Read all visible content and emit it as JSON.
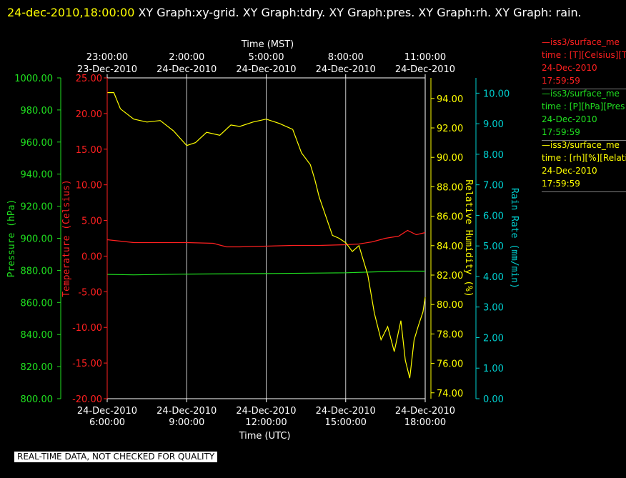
{
  "header": {
    "timestamp": "24-dec-2010,18:00:00",
    "graphs": "  XY Graph:xy-grid.  XY Graph:tdry.  XY Graph:pres.  XY Graph:rh.  XY Graph: rain."
  },
  "notice": "REAL-TIME DATA, NOT CHECKED FOR QUALITY",
  "legend": [
    {
      "line1": "—iss3/surface_me",
      "line2": "time : [T][Celsius][T",
      "date": "24-Dec-2010",
      "time": "17:59:59",
      "color": "#ff2020"
    },
    {
      "line1": "—iss3/surface_me",
      "line2": "time : [P][hPa][Pres",
      "date": "24-Dec-2010",
      "time": "17:59:59",
      "color": "#20e020"
    },
    {
      "line1": "—iss3/surface_me",
      "line2": "time : [rh][%][Relati",
      "date": "24-Dec-2010",
      "time": "17:59:59",
      "color": "#ffff00"
    }
  ],
  "chart_data": {
    "type": "line",
    "top_axis": {
      "title": "Time (MST)",
      "ticks": [
        {
          "at": "2010-12-24T06:00:00Z",
          "time": "23:00:00",
          "date": "23-Dec-2010"
        },
        {
          "at": "2010-12-24T09:00:00Z",
          "time": "2:00:00",
          "date": "24-Dec-2010"
        },
        {
          "at": "2010-12-24T12:00:00Z",
          "time": "5:00:00",
          "date": "24-Dec-2010"
        },
        {
          "at": "2010-12-24T15:00:00Z",
          "time": "8:00:00",
          "date": "24-Dec-2010"
        },
        {
          "at": "2010-12-24T18:00:00Z",
          "time": "11:00:00",
          "date": "24-Dec-2010"
        }
      ]
    },
    "bottom_axis": {
      "title": "Time (UTC)",
      "range": [
        "2010-12-24T06:00:00Z",
        "2010-12-24T18:00:00Z"
      ],
      "ticks": [
        {
          "at": "2010-12-24T06:00:00Z",
          "date": "24-Dec-2010",
          "time": "6:00:00"
        },
        {
          "at": "2010-12-24T09:00:00Z",
          "date": "24-Dec-2010",
          "time": "9:00:00"
        },
        {
          "at": "2010-12-24T12:00:00Z",
          "date": "24-Dec-2010",
          "time": "12:00:00"
        },
        {
          "at": "2010-12-24T15:00:00Z",
          "date": "24-Dec-2010",
          "time": "15:00:00"
        },
        {
          "at": "2010-12-24T18:00:00Z",
          "date": "24-Dec-2010",
          "time": "18:00:00"
        }
      ]
    },
    "grid": true,
    "axes": {
      "pressure": {
        "label": "Pressure (hPa)",
        "color": "#20e020",
        "range": [
          800,
          1000
        ],
        "ticks": [
          "800.00",
          "820.00",
          "840.00",
          "860.00",
          "880.00",
          "900.00",
          "920.00",
          "940.00",
          "960.00",
          "980.00",
          "1000.00"
        ]
      },
      "temperature": {
        "label": "Temperature (Celsius)",
        "color": "#ff2020",
        "range": [
          -20,
          25
        ],
        "ticks": [
          "-20.00",
          "-15.00",
          "-10.00",
          "-5.00",
          "0.00",
          "5.00",
          "10.00",
          "15.00",
          "20.00",
          "25.00"
        ]
      },
      "rh": {
        "label": "Relative Humidity (%)",
        "color": "#ffff00",
        "range": [
          73.6,
          95.4
        ],
        "ticks": [
          "74.00",
          "76.00",
          "78.00",
          "80.00",
          "82.00",
          "84.00",
          "86.00",
          "88.00",
          "90.00",
          "92.00",
          "94.00"
        ]
      },
      "rain": {
        "label": "Rain Rate (mm/min)",
        "color": "#00d0d0",
        "range": [
          0,
          10.5
        ],
        "ticks": [
          "0.00",
          "1.00",
          "2.00",
          "3.00",
          "4.00",
          "5.00",
          "6.00",
          "7.00",
          "8.00",
          "9.00",
          "10.00"
        ]
      }
    },
    "series": [
      {
        "axis": "temperature",
        "color": "#ff2020",
        "x": [
          "2010-12-24T06:00:00Z",
          "2010-12-24T06:30:00Z",
          "2010-12-24T07:00:00Z",
          "2010-12-24T08:00:00Z",
          "2010-12-24T09:00:00Z",
          "2010-12-24T10:00:00Z",
          "2010-12-24T10:30:00Z",
          "2010-12-24T11:00:00Z",
          "2010-12-24T12:00:00Z",
          "2010-12-24T13:00:00Z",
          "2010-12-24T14:00:00Z",
          "2010-12-24T15:00:00Z",
          "2010-12-24T15:30:00Z",
          "2010-12-24T16:00:00Z",
          "2010-12-24T16:30:00Z",
          "2010-12-24T17:00:00Z",
          "2010-12-24T17:20:00Z",
          "2010-12-24T17:40:00Z",
          "2010-12-24T18:00:00Z"
        ],
        "y": [
          2.3,
          2.1,
          1.9,
          1.9,
          1.9,
          1.8,
          1.3,
          1.3,
          1.4,
          1.5,
          1.5,
          1.6,
          1.7,
          2.0,
          2.5,
          2.8,
          3.6,
          3.0,
          3.3
        ]
      },
      {
        "axis": "pressure",
        "color": "#20e020",
        "x": [
          "2010-12-24T06:00:00Z",
          "2010-12-24T07:00:00Z",
          "2010-12-24T09:00:00Z",
          "2010-12-24T12:00:00Z",
          "2010-12-24T15:00:00Z",
          "2010-12-24T16:00:00Z",
          "2010-12-24T17:00:00Z",
          "2010-12-24T18:00:00Z"
        ],
        "y": [
          877.5,
          877.2,
          877.7,
          878.0,
          878.5,
          879.0,
          879.5,
          879.5
        ]
      },
      {
        "axis": "rh",
        "color": "#ffff00",
        "x": [
          "2010-12-24T06:00:00Z",
          "2010-12-24T06:15:00Z",
          "2010-12-24T06:30:00Z",
          "2010-12-24T07:00:00Z",
          "2010-12-24T07:30:00Z",
          "2010-12-24T08:00:00Z",
          "2010-12-24T08:30:00Z",
          "2010-12-24T09:00:00Z",
          "2010-12-24T09:20:00Z",
          "2010-12-24T09:45:00Z",
          "2010-12-24T10:15:00Z",
          "2010-12-24T10:40:00Z",
          "2010-12-24T11:00:00Z",
          "2010-12-24T11:30:00Z",
          "2010-12-24T12:00:00Z",
          "2010-12-24T12:30:00Z",
          "2010-12-24T13:00:00Z",
          "2010-12-24T13:20:00Z",
          "2010-12-24T13:40:00Z",
          "2010-12-24T13:50:00Z",
          "2010-12-24T14:00:00Z",
          "2010-12-24T14:15:00Z",
          "2010-12-24T14:30:00Z",
          "2010-12-24T14:45:00Z",
          "2010-12-24T15:00:00Z",
          "2010-12-24T15:15:00Z",
          "2010-12-24T15:30:00Z",
          "2010-12-24T15:50:00Z",
          "2010-12-24T16:05:00Z",
          "2010-12-24T16:20:00Z",
          "2010-12-24T16:35:00Z",
          "2010-12-24T16:50:00Z",
          "2010-12-24T17:05:00Z",
          "2010-12-24T17:15:00Z",
          "2010-12-24T17:25:00Z",
          "2010-12-24T17:35:00Z",
          "2010-12-24T17:45:00Z",
          "2010-12-24T17:55:00Z",
          "2010-12-24T18:00:00Z"
        ],
        "y": [
          94.4,
          94.4,
          93.3,
          92.6,
          92.4,
          92.5,
          91.8,
          90.8,
          91.0,
          91.7,
          91.5,
          92.2,
          92.1,
          92.4,
          92.6,
          92.3,
          91.9,
          90.3,
          89.5,
          88.5,
          87.3,
          86.0,
          84.7,
          84.5,
          84.2,
          83.6,
          84.0,
          82.0,
          79.4,
          77.6,
          78.5,
          76.8,
          78.9,
          76.2,
          75.0,
          77.6,
          78.6,
          79.5,
          80.5
        ]
      }
    ]
  }
}
